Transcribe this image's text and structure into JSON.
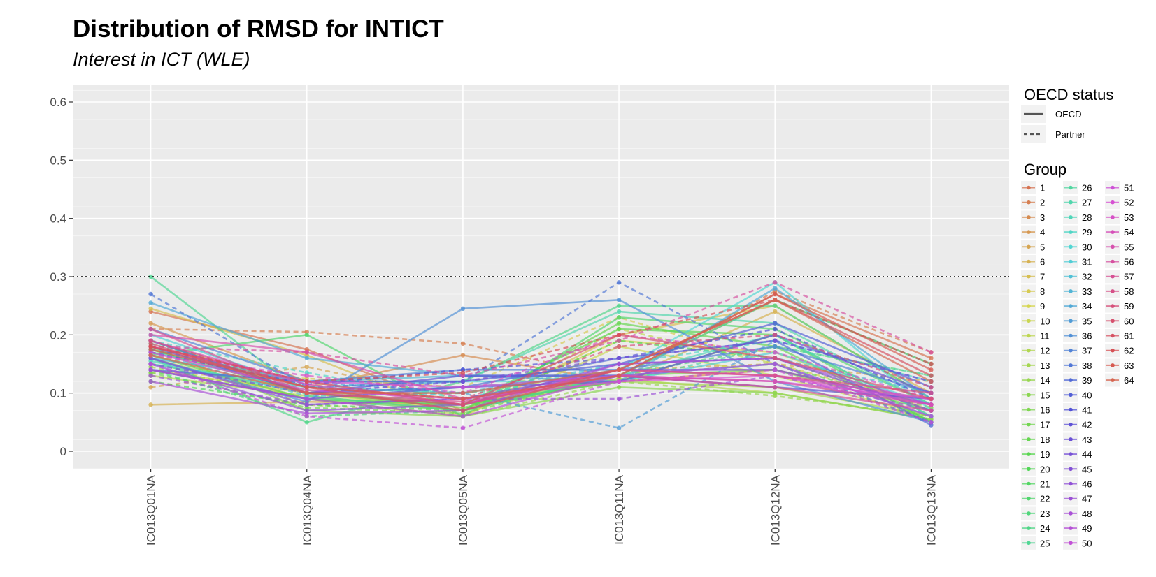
{
  "chart_data": {
    "type": "line",
    "title": "Distribution of RMSD for INTICT",
    "subtitle": "Interest in ICT (WLE)",
    "xlabel": "",
    "ylabel": "",
    "categories": [
      "IC013Q01NA",
      "IC013Q04NA",
      "IC013Q05NA",
      "IC013Q11NA",
      "IC013Q12NA",
      "IC013Q13NA"
    ],
    "ylim": [
      -0.03,
      0.63
    ],
    "yticks": [
      0,
      0.1,
      0.2,
      0.3,
      0.4,
      0.5,
      0.6
    ],
    "ytick_labels": [
      "0",
      "0.1",
      "0.2",
      "0.3",
      "0.4",
      "0.5",
      "0.6"
    ],
    "reference_line": {
      "y": 0.3,
      "style": "dotted",
      "color": "#000000"
    },
    "grid": true,
    "panel_background": "#ebebeb",
    "legend_placement": "right",
    "legend_oecd": {
      "title": "OECD status",
      "items": [
        {
          "label": "OECD",
          "linetype": "solid"
        },
        {
          "label": "Partner",
          "linetype": "dashed"
        }
      ]
    },
    "legend_group": {
      "title": "Group",
      "labels": [
        "1",
        "2",
        "3",
        "4",
        "5",
        "6",
        "7",
        "8",
        "9",
        "10",
        "11",
        "12",
        "13",
        "14",
        "15",
        "16",
        "17",
        "18",
        "19",
        "20",
        "21",
        "22",
        "23",
        "24",
        "25",
        "26",
        "27",
        "28",
        "29",
        "30",
        "31",
        "32",
        "33",
        "34",
        "35",
        "36",
        "37",
        "38",
        "39",
        "40",
        "41",
        "42",
        "43",
        "44",
        "45",
        "46",
        "47",
        "48",
        "49",
        "50",
        "51",
        "52",
        "53",
        "54",
        "55",
        "56",
        "57",
        "58",
        "59",
        "60",
        "61",
        "62",
        "63",
        "64"
      ]
    },
    "series": [
      {
        "name": "1",
        "oecd": "OECD",
        "values": [
          0.24,
          0.175,
          0.07,
          0.13,
          0.27,
          0.16
        ]
      },
      {
        "name": "2",
        "oecd": "Partner",
        "values": [
          0.21,
          0.205,
          0.185,
          0.125,
          0.275,
          0.17
        ]
      },
      {
        "name": "3",
        "oecd": "OECD",
        "values": [
          0.19,
          0.11,
          0.165,
          0.12,
          0.14,
          0.08
        ]
      },
      {
        "name": "4",
        "oecd": "OECD",
        "values": [
          0.22,
          0.12,
          0.08,
          0.13,
          0.26,
          0.15
        ]
      },
      {
        "name": "5",
        "oecd": "Partner",
        "values": [
          0.11,
          0.145,
          0.09,
          0.14,
          0.15,
          0.12
        ]
      },
      {
        "name": "6",
        "oecd": "OECD",
        "values": [
          0.08,
          0.085,
          0.08,
          0.12,
          0.24,
          0.1
        ]
      },
      {
        "name": "7",
        "oecd": "OECD",
        "values": [
          0.245,
          0.165,
          0.06,
          0.2,
          0.25,
          0.09
        ]
      },
      {
        "name": "8",
        "oecd": "Partner",
        "values": [
          0.135,
          0.125,
          0.11,
          0.23,
          0.15,
          0.08
        ]
      },
      {
        "name": "9",
        "oecd": "OECD",
        "values": [
          0.14,
          0.1,
          0.07,
          0.19,
          0.17,
          0.07
        ]
      },
      {
        "name": "10",
        "oecd": "OECD",
        "values": [
          0.16,
          0.09,
          0.06,
          0.18,
          0.13,
          0.06
        ]
      },
      {
        "name": "11",
        "oecd": "Partner",
        "values": [
          0.17,
          0.08,
          0.065,
          0.21,
          0.15,
          0.05
        ]
      },
      {
        "name": "12",
        "oecd": "OECD",
        "values": [
          0.13,
          0.095,
          0.07,
          0.125,
          0.1,
          0.055
        ]
      },
      {
        "name": "13",
        "oecd": "OECD",
        "values": [
          0.15,
          0.105,
          0.08,
          0.12,
          0.11,
          0.06
        ]
      },
      {
        "name": "14",
        "oecd": "Partner",
        "values": [
          0.145,
          0.09,
          0.06,
          0.12,
          0.095,
          0.06
        ]
      },
      {
        "name": "15",
        "oecd": "OECD",
        "values": [
          0.18,
          0.07,
          0.06,
          0.11,
          0.1,
          0.055
        ]
      },
      {
        "name": "16",
        "oecd": "OECD",
        "values": [
          0.19,
          0.1,
          0.075,
          0.13,
          0.14,
          0.07
        ]
      },
      {
        "name": "17",
        "oecd": "Partner",
        "values": [
          0.135,
          0.075,
          0.065,
          0.13,
          0.15,
          0.075
        ]
      },
      {
        "name": "18",
        "oecd": "OECD",
        "values": [
          0.165,
          0.09,
          0.07,
          0.22,
          0.18,
          0.05
        ]
      },
      {
        "name": "19",
        "oecd": "OECD",
        "values": [
          0.175,
          0.1,
          0.08,
          0.21,
          0.2,
          0.06
        ]
      },
      {
        "name": "20",
        "oecd": "Partner",
        "values": [
          0.12,
          0.08,
          0.07,
          0.19,
          0.16,
          0.07
        ]
      },
      {
        "name": "21",
        "oecd": "OECD",
        "values": [
          0.14,
          0.09,
          0.08,
          0.12,
          0.2,
          0.05
        ]
      },
      {
        "name": "22",
        "oecd": "OECD",
        "values": [
          0.165,
          0.2,
          0.06,
          0.23,
          0.21,
          0.08
        ]
      },
      {
        "name": "23",
        "oecd": "Partner",
        "values": [
          0.14,
          0.06,
          0.07,
          0.13,
          0.18,
          0.13
        ]
      },
      {
        "name": "24",
        "oecd": "OECD",
        "values": [
          0.16,
          0.05,
          0.12,
          0.25,
          0.25,
          0.09
        ]
      },
      {
        "name": "25",
        "oecd": "OECD",
        "values": [
          0.3,
          0.095,
          0.07,
          0.13,
          0.26,
          0.15
        ]
      },
      {
        "name": "26",
        "oecd": "Partner",
        "values": [
          0.185,
          0.11,
          0.1,
          0.12,
          0.18,
          0.13
        ]
      },
      {
        "name": "27",
        "oecd": "OECD",
        "values": [
          0.17,
          0.12,
          0.12,
          0.24,
          0.22,
          0.08
        ]
      },
      {
        "name": "28",
        "oecd": "OECD",
        "values": [
          0.155,
          0.1,
          0.11,
          0.13,
          0.2,
          0.06
        ]
      },
      {
        "name": "29",
        "oecd": "Partner",
        "values": [
          0.19,
          0.135,
          0.09,
          0.15,
          0.19,
          0.12
        ]
      },
      {
        "name": "30",
        "oecd": "OECD",
        "values": [
          0.15,
          0.11,
          0.1,
          0.14,
          0.29,
          0.07
        ]
      },
      {
        "name": "31",
        "oecd": "OECD",
        "values": [
          0.2,
          0.11,
          0.12,
          0.12,
          0.17,
          0.08
        ]
      },
      {
        "name": "32",
        "oecd": "Partner",
        "values": [
          0.17,
          0.095,
          0.1,
          0.15,
          0.16,
          0.1
        ]
      },
      {
        "name": "33",
        "oecd": "OECD",
        "values": [
          0.16,
          0.12,
          0.13,
          0.13,
          0.15,
          0.06
        ]
      },
      {
        "name": "34",
        "oecd": "OECD",
        "values": [
          0.255,
          0.16,
          0.13,
          0.12,
          0.28,
          0.09
        ]
      },
      {
        "name": "35",
        "oecd": "Partner",
        "values": [
          0.175,
          0.12,
          0.1,
          0.04,
          0.19,
          0.12
        ]
      },
      {
        "name": "36",
        "oecd": "OECD",
        "values": [
          0.16,
          0.085,
          0.245,
          0.26,
          0.12,
          0.05
        ]
      },
      {
        "name": "37",
        "oecd": "OECD",
        "values": [
          0.21,
          0.12,
          0.14,
          0.14,
          0.18,
          0.1
        ]
      },
      {
        "name": "38",
        "oecd": "Partner",
        "values": [
          0.27,
          0.11,
          0.12,
          0.29,
          0.15,
          0.05
        ]
      },
      {
        "name": "39",
        "oecd": "OECD",
        "values": [
          0.19,
          0.1,
          0.11,
          0.16,
          0.19,
          0.045
        ]
      },
      {
        "name": "40",
        "oecd": "OECD",
        "values": [
          0.14,
          0.12,
          0.12,
          0.15,
          0.22,
          0.11
        ]
      },
      {
        "name": "41",
        "oecd": "Partner",
        "values": [
          0.17,
          0.115,
          0.14,
          0.16,
          0.21,
          0.09
        ]
      },
      {
        "name": "42",
        "oecd": "OECD",
        "values": [
          0.18,
          0.1,
          0.13,
          0.13,
          0.11,
          0.09
        ]
      },
      {
        "name": "43",
        "oecd": "OECD",
        "values": [
          0.14,
          0.09,
          0.11,
          0.12,
          0.2,
          0.1
        ]
      },
      {
        "name": "44",
        "oecd": "Partner",
        "values": [
          0.15,
          0.1,
          0.12,
          0.16,
          0.19,
          0.12
        ]
      },
      {
        "name": "45",
        "oecd": "OECD",
        "values": [
          0.16,
          0.08,
          0.09,
          0.14,
          0.14,
          0.08
        ]
      },
      {
        "name": "46",
        "oecd": "OECD",
        "values": [
          0.15,
          0.07,
          0.08,
          0.15,
          0.16,
          0.07
        ]
      },
      {
        "name": "47",
        "oecd": "Partner",
        "values": [
          0.13,
          0.08,
          0.09,
          0.09,
          0.13,
          0.07
        ]
      },
      {
        "name": "48",
        "oecd": "OECD",
        "values": [
          0.12,
          0.065,
          0.07,
          0.15,
          0.16,
          0.08
        ]
      },
      {
        "name": "49",
        "oecd": "OECD",
        "values": [
          0.14,
          0.09,
          0.06,
          0.13,
          0.15,
          0.06
        ]
      },
      {
        "name": "50",
        "oecd": "Partner",
        "values": [
          0.15,
          0.06,
          0.04,
          0.12,
          0.14,
          0.05
        ]
      },
      {
        "name": "51",
        "oecd": "OECD",
        "values": [
          0.18,
          0.12,
          0.11,
          0.13,
          0.12,
          0.09
        ]
      },
      {
        "name": "52",
        "oecd": "OECD",
        "values": [
          0.17,
          0.105,
          0.09,
          0.12,
          0.13,
          0.08
        ]
      },
      {
        "name": "53",
        "oecd": "Partner",
        "values": [
          0.165,
          0.13,
          0.1,
          0.2,
          0.17,
          0.09
        ]
      },
      {
        "name": "54",
        "oecd": "OECD",
        "values": [
          0.19,
          0.115,
          0.08,
          0.14,
          0.13,
          0.09
        ]
      },
      {
        "name": "55",
        "oecd": "OECD",
        "values": [
          0.2,
          0.17,
          0.09,
          0.13,
          0.12,
          0.08
        ]
      },
      {
        "name": "56",
        "oecd": "Partner",
        "values": [
          0.18,
          0.17,
          0.13,
          0.19,
          0.29,
          0.17
        ]
      },
      {
        "name": "57",
        "oecd": "OECD",
        "values": [
          0.21,
          0.1,
          0.085,
          0.13,
          0.11,
          0.07
        ]
      },
      {
        "name": "58",
        "oecd": "OECD",
        "values": [
          0.18,
          0.12,
          0.08,
          0.14,
          0.13,
          0.1
        ]
      },
      {
        "name": "59",
        "oecd": "Partner",
        "values": [
          0.19,
          0.11,
          0.09,
          0.18,
          0.2,
          0.11
        ]
      },
      {
        "name": "60",
        "oecd": "OECD",
        "values": [
          0.185,
          0.1,
          0.08,
          0.2,
          0.16,
          0.09
        ]
      },
      {
        "name": "61",
        "oecd": "OECD",
        "values": [
          0.18,
          0.11,
          0.07,
          0.14,
          0.26,
          0.13
        ]
      },
      {
        "name": "62",
        "oecd": "Partner",
        "values": [
          0.18,
          0.12,
          0.135,
          0.2,
          0.26,
          0.15
        ]
      },
      {
        "name": "63",
        "oecd": "OECD",
        "values": [
          0.175,
          0.11,
          0.09,
          0.13,
          0.27,
          0.14
        ]
      },
      {
        "name": "64",
        "oecd": "OECD",
        "values": [
          0.165,
          0.1,
          0.1,
          0.14,
          0.26,
          0.12
        ]
      }
    ]
  }
}
